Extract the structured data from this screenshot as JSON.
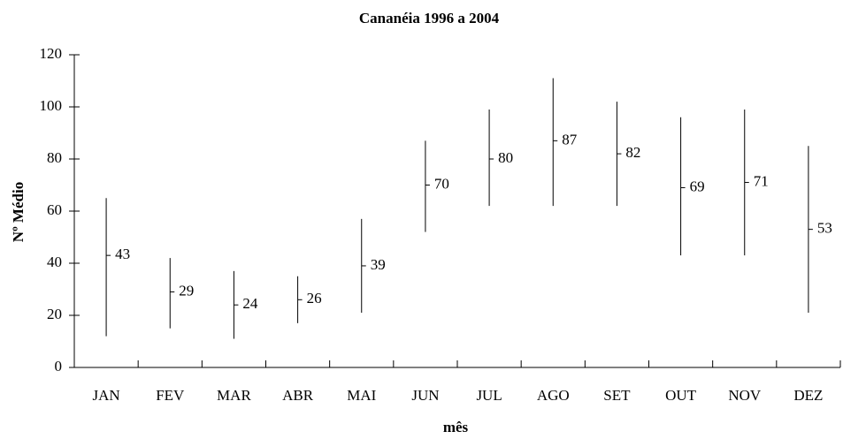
{
  "chart_data": {
    "type": "hilo",
    "title": "Cananéia 1996 a 2004",
    "xlabel": "mês",
    "ylabel": "Nº Médio",
    "categories": [
      "JAN",
      "FEV",
      "MAR",
      "ABR",
      "MAI",
      "JUN",
      "JUL",
      "AGO",
      "SET",
      "OUT",
      "NOV",
      "DEZ"
    ],
    "values": [
      43,
      29,
      24,
      26,
      39,
      70,
      80,
      87,
      82,
      69,
      71,
      53
    ],
    "high": [
      65,
      42,
      37,
      35,
      57,
      87,
      99,
      111,
      102,
      96,
      99,
      85
    ],
    "low": [
      12,
      15,
      11,
      17,
      21,
      52,
      62,
      62,
      62,
      43,
      43,
      21
    ],
    "color": "#000000",
    "ylim": [
      0,
      120
    ],
    "yticks": [
      0,
      20,
      40,
      60,
      80,
      100,
      120
    ]
  }
}
